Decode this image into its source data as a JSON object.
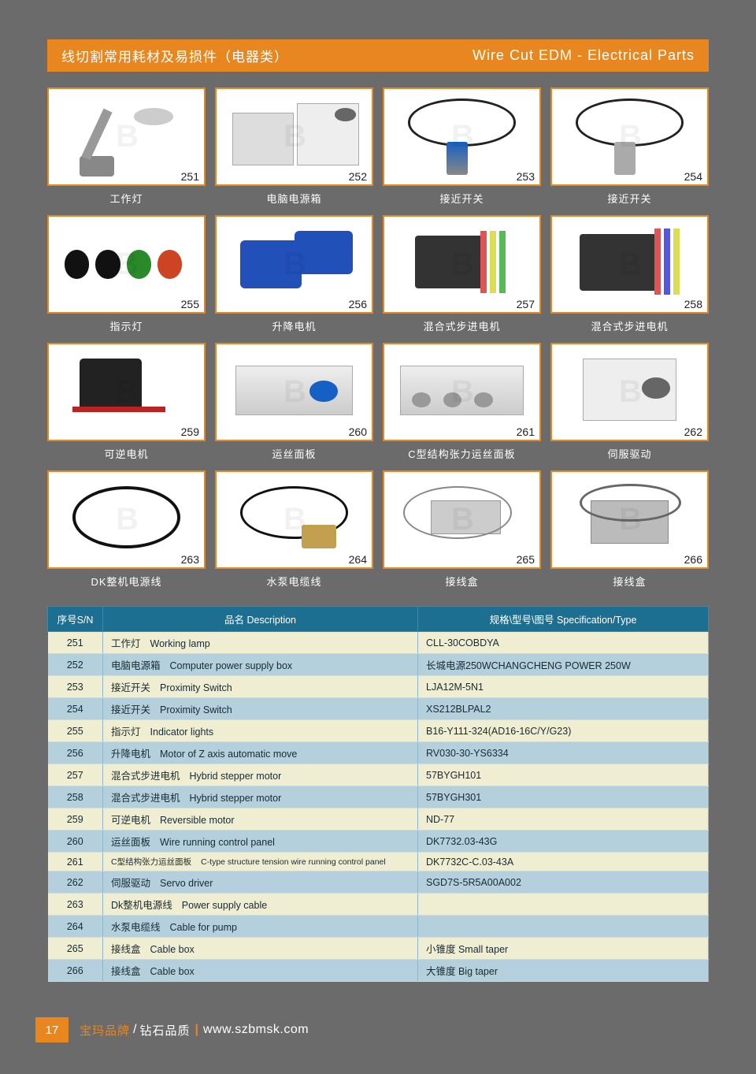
{
  "header": {
    "left": "线切割常用耗材及易损件（电器类）",
    "right": "Wire Cut EDM - Electrical Parts"
  },
  "thumb_border_color": "#e8871f",
  "page_bg": "#6b6b6b",
  "items": [
    {
      "num": "251",
      "caption": "工作灯"
    },
    {
      "num": "252",
      "caption": "电脑电源箱"
    },
    {
      "num": "253",
      "caption": "接近开关"
    },
    {
      "num": "254",
      "caption": "接近开关"
    },
    {
      "num": "255",
      "caption": "指示灯"
    },
    {
      "num": "256",
      "caption": "升降电机"
    },
    {
      "num": "257",
      "caption": "混合式步进电机"
    },
    {
      "num": "258",
      "caption": "混合式步进电机"
    },
    {
      "num": "259",
      "caption": "可逆电机"
    },
    {
      "num": "260",
      "caption": "运丝面板"
    },
    {
      "num": "261",
      "caption": "C型结构张力运丝面板"
    },
    {
      "num": "262",
      "caption": "伺服驱动"
    },
    {
      "num": "263",
      "caption": "DK整机电源线"
    },
    {
      "num": "264",
      "caption": "水泵电缆线"
    },
    {
      "num": "265",
      "caption": "接线盒"
    },
    {
      "num": "266",
      "caption": "接线盒"
    }
  ],
  "table": {
    "head": {
      "sn": "序号S/N",
      "desc": "品名 Description",
      "spec": "规格\\型号\\图号 Specification/Type"
    },
    "row_color_A": "#efeed2",
    "row_color_B": "#b3d0dc",
    "head_bg": "#1d6f91",
    "rows": [
      {
        "sn": "251",
        "cn": "工作灯",
        "en": "Working lamp",
        "spec": "CLL-30COBDYA"
      },
      {
        "sn": "252",
        "cn": "电脑电源箱",
        "en": "Computer power supply box",
        "spec": "长城电源250WCHANGCHENG POWER 250W"
      },
      {
        "sn": "253",
        "cn": "接近开关",
        "en": "Proximity Switch",
        "spec": "LJA12M-5N1"
      },
      {
        "sn": "254",
        "cn": "接近开关",
        "en": "Proximity Switch",
        "spec": "XS212BLPAL2"
      },
      {
        "sn": "255",
        "cn": "指示灯",
        "en": "Indicator lights",
        "spec": "B16-Y111-324(AD16-16C/Y/G23)"
      },
      {
        "sn": "256",
        "cn": "升降电机",
        "en": "Motor of Z axis automatic move",
        "spec": "RV030-30-YS6334"
      },
      {
        "sn": "257",
        "cn": "混合式步进电机",
        "en": "Hybrid stepper motor",
        "spec": "57BYGH101"
      },
      {
        "sn": "258",
        "cn": "混合式步进电机",
        "en": "Hybrid stepper motor",
        "spec": "57BYGH301"
      },
      {
        "sn": "259",
        "cn": "可逆电机",
        "en": "Reversible motor",
        "spec": "ND-77"
      },
      {
        "sn": "260",
        "cn": "运丝面板",
        "en": "Wire running control panel",
        "spec": "DK7732.03-43G"
      },
      {
        "sn": "261",
        "cn": "C型结构张力运丝面板",
        "en": "C-type structure tension wire running control panel",
        "spec": "DK7732C-C.03-43A",
        "small": true
      },
      {
        "sn": "262",
        "cn": "伺服驱动",
        "en": "Servo driver",
        "spec": "SGD7S-5R5A00A002"
      },
      {
        "sn": "263",
        "cn": "Dk整机电源线",
        "en": "Power supply cable",
        "spec": ""
      },
      {
        "sn": "264",
        "cn": "水泵电缆线",
        "en": "Cable for pump",
        "spec": ""
      },
      {
        "sn": "265",
        "cn": "接线盒",
        "en": "Cable box",
        "spec": "小锥度    Small taper"
      },
      {
        "sn": "266",
        "cn": "接线盒",
        "en": "Cable box",
        "spec": "大锥度    Big taper"
      }
    ]
  },
  "footer": {
    "page": "17",
    "brand": "宝玛品牌",
    "slogan": "钻石品质",
    "url": "www.szbmsk.com"
  }
}
